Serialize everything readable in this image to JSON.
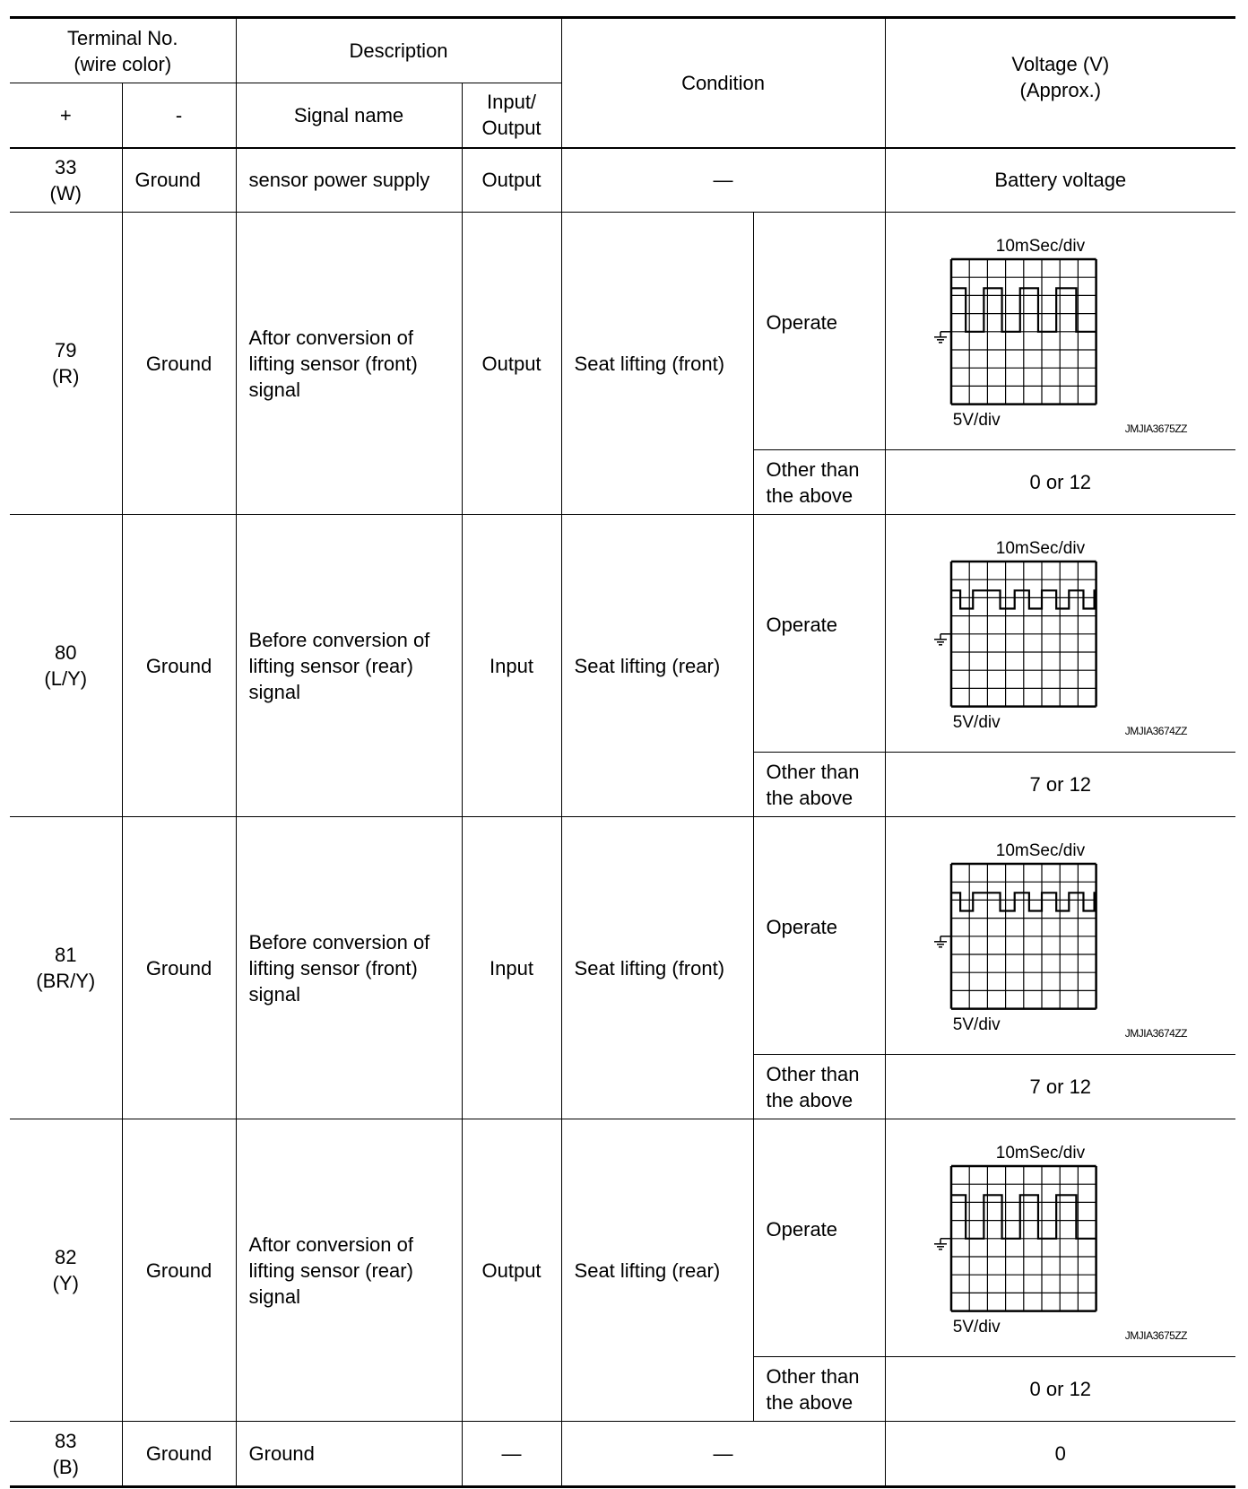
{
  "header": {
    "terminal": "Terminal No.\n(wire color)",
    "plus": "+",
    "minus": "-",
    "description": "Description",
    "signal_name": "Signal name",
    "io": "Input/\nOutput",
    "condition": "Condition",
    "voltage": "Voltage (V)\n(Approx.)"
  },
  "rows": [
    {
      "terminal": "33\n(W)",
      "minus": "Ground",
      "signal": "sensor power supply",
      "io": "Output",
      "condition": "—",
      "voltage": "Battery voltage"
    },
    {
      "terminal": "79\n(R)",
      "minus": "Ground",
      "signal": "Aftor conversion of\nlifting sensor (front)\nsignal",
      "io": "Output",
      "condition": "Seat lifting (front)",
      "operate": "Operate",
      "other": "Other than\nthe above",
      "other_voltage": "0 or 12",
      "waveform": {
        "time_div": "10mSec/div",
        "volt_div": "5V/div",
        "id": "JMJIA3675ZZ",
        "low_v": 0,
        "high_v": 12,
        "pattern": "pulse-high"
      }
    },
    {
      "terminal": "80\n(L/Y)",
      "minus": "Ground",
      "signal": "Before conversion of\nlifting sensor (rear)\nsignal",
      "io": "Input",
      "condition": "Seat lifting (rear)",
      "operate": "Operate",
      "other": "Other than\nthe above",
      "other_voltage": "7 or 12",
      "waveform": {
        "time_div": "10mSec/div",
        "volt_div": "5V/div",
        "id": "JMJIA3674ZZ",
        "low_v": 7,
        "high_v": 12,
        "pattern": "pulse-dip"
      }
    },
    {
      "terminal": "81\n(BR/Y)",
      "minus": "Ground",
      "signal": "Before conversion of\nlifting sensor (front)\nsignal",
      "io": "Input",
      "condition": "Seat lifting (front)",
      "operate": "Operate",
      "other": "Other than\nthe above",
      "other_voltage": "7 or 12",
      "waveform": {
        "time_div": "10mSec/div",
        "volt_div": "5V/div",
        "id": "JMJIA3674ZZ",
        "low_v": 7,
        "high_v": 12,
        "pattern": "pulse-dip"
      }
    },
    {
      "terminal": "82\n(Y)",
      "minus": "Ground",
      "signal": "Aftor conversion of\nlifting sensor (rear)\nsignal",
      "io": "Output",
      "condition": "Seat lifting (rear)",
      "operate": "Operate",
      "other": "Other than\nthe above",
      "other_voltage": "0 or 12",
      "waveform": {
        "time_div": "10mSec/div",
        "volt_div": "5V/div",
        "id": "JMJIA3675ZZ",
        "low_v": 0,
        "high_v": 12,
        "pattern": "pulse-high"
      }
    },
    {
      "terminal": "83\n(B)",
      "minus": "Ground",
      "signal": "Ground",
      "io": "—",
      "condition": "—",
      "voltage": "0"
    }
  ]
}
